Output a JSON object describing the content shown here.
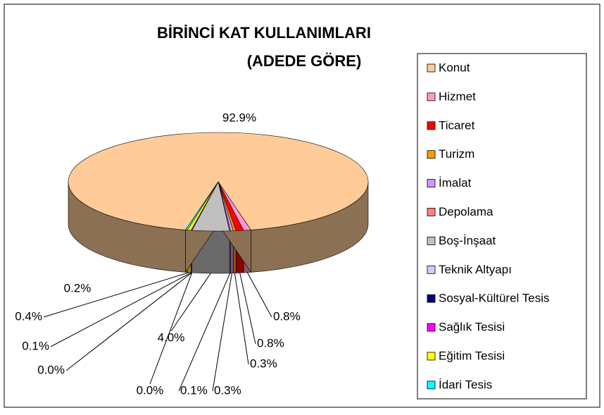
{
  "chart_data": {
    "type": "pie",
    "title": [
      "BİRİNCİ KAT KULLANIMLARI",
      "(ADEDE GÖRE)"
    ],
    "categories": [
      "Konut",
      "Hizmet",
      "Ticaret",
      "Turizm",
      "İmalat",
      "Depolama",
      "Boş-İnşaat",
      "Teknik Altyapı",
      "Sosyal-Kültürel Tesis",
      "Sağlık Tesisi",
      "Eğitim Tesisi",
      "İdari Tesis"
    ],
    "values": [
      92.9,
      0.8,
      0.8,
      0.3,
      0.3,
      0.1,
      4.0,
      0.0,
      0.0,
      0.1,
      0.4,
      0.2
    ],
    "value_labels": [
      "92.9%",
      "0.8%",
      "0.8%",
      "0.3%",
      "0.3%",
      "0.1%",
      "4.0%",
      "0.0%",
      "0.0%",
      "0.1%",
      "0.4%",
      "0.2%"
    ],
    "colors": [
      "#FFCC99",
      "#FF99CC",
      "#FF0000",
      "#FF9900",
      "#CC99FF",
      "#FF8080",
      "#C0C0C0",
      "#CCCCFF",
      "#000080",
      "#FF00FF",
      "#FFFF00",
      "#00FFFF"
    ],
    "legend": "right"
  }
}
